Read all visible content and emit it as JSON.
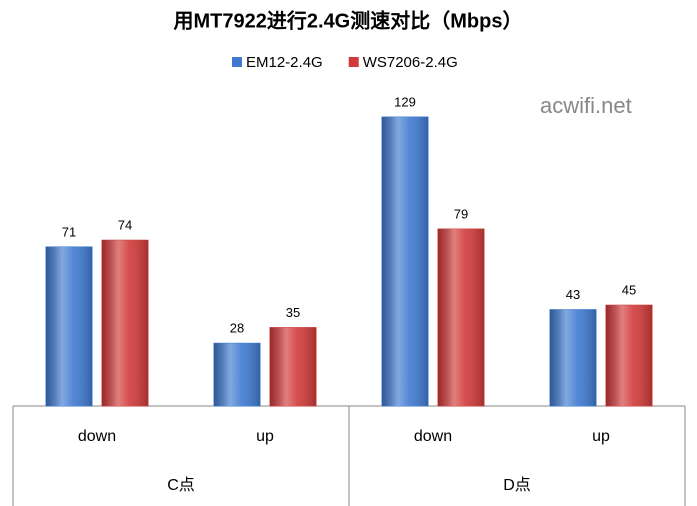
{
  "chart_data": {
    "type": "bar",
    "title": "用MT7922进行2.4G测速对比（Mbps）",
    "watermark": "acwifi.net",
    "categories": [
      "down",
      "up",
      "down",
      "up"
    ],
    "groups": [
      "C点",
      "D点"
    ],
    "series": [
      {
        "name": "EM12-2.4G",
        "color": "#3f7ad0",
        "values": [
          71,
          28,
          129,
          43
        ]
      },
      {
        "name": "WS7206-2.4G",
        "color": "#d03a3a",
        "values": [
          74,
          35,
          79,
          45
        ]
      }
    ],
    "legend": "top"
  }
}
